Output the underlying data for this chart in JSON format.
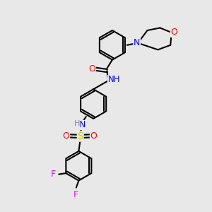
{
  "background_color": "#e8e8e8",
  "bond_color": "#000000",
  "atom_colors": {
    "N": "#0000ff",
    "O": "#ff0000",
    "S": "#cccc00",
    "F": "#ff00ff",
    "H": "#888888",
    "C": "#000000"
  },
  "title": "",
  "figsize": [
    3.0,
    3.0
  ],
  "dpi": 100
}
